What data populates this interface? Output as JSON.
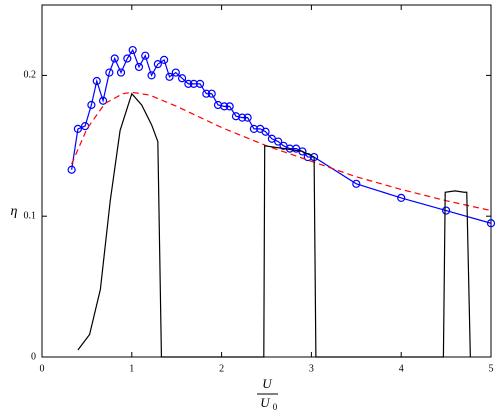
{
  "chart_data": {
    "type": "line",
    "y_label": "η",
    "x_label_numerator": "U",
    "x_label_denominator": "U",
    "x_label_denominator_subscript": "0",
    "xlim": [
      0,
      5
    ],
    "xticks": [
      0,
      1,
      2,
      3,
      4,
      5
    ],
    "ylim": [
      0,
      0.25
    ],
    "yticks": [
      0,
      0.1,
      0.2
    ],
    "grid": false,
    "series": [
      {
        "color": "#0000ff",
        "marker": "circle",
        "dash": false,
        "x": [
          0.33,
          0.4,
          0.48,
          0.55,
          0.61,
          0.68,
          0.75,
          0.81,
          0.88,
          0.95,
          1.01,
          1.08,
          1.15,
          1.22,
          1.29,
          1.36,
          1.42,
          1.49,
          1.56,
          1.63,
          1.69,
          1.76,
          1.83,
          1.89,
          1.96,
          2.03,
          2.09,
          2.16,
          2.23,
          2.29,
          2.36,
          2.43,
          2.49,
          2.56,
          2.63,
          2.69,
          2.76,
          2.83,
          2.9,
          2.96,
          3.03,
          3.5,
          4.0,
          4.5,
          5.0
        ],
        "values": [
          0.133,
          0.162,
          0.164,
          0.179,
          0.196,
          0.182,
          0.202,
          0.212,
          0.202,
          0.212,
          0.218,
          0.206,
          0.214,
          0.2,
          0.208,
          0.211,
          0.199,
          0.202,
          0.198,
          0.194,
          0.194,
          0.194,
          0.187,
          0.187,
          0.179,
          0.178,
          0.178,
          0.171,
          0.17,
          0.17,
          0.162,
          0.162,
          0.16,
          0.155,
          0.153,
          0.15,
          0.148,
          0.148,
          0.146,
          0.142,
          0.142,
          0.123,
          0.113,
          0.104,
          0.095
        ]
      },
      {
        "color": "#ff0000",
        "marker": "none",
        "dash": true,
        "x": [
          0.33,
          0.5,
          0.7,
          0.9,
          1.0,
          1.2,
          1.5,
          2.0,
          2.5,
          3.0,
          3.5,
          4.0,
          4.5,
          5.0
        ],
        "values": [
          0.137,
          0.162,
          0.18,
          0.187,
          0.188,
          0.186,
          0.178,
          0.163,
          0.15,
          0.139,
          0.128,
          0.119,
          0.111,
          0.104
        ]
      },
      {
        "color": "#000000",
        "marker": "none",
        "dash": false,
        "x": [
          0.4,
          0.53,
          0.65,
          0.76,
          0.87,
          1.0,
          1.11,
          1.22,
          1.29,
          1.33,
          2.47,
          2.48,
          2.7,
          2.9,
          3.0,
          3.03,
          3.05,
          4.47,
          4.49,
          4.6,
          4.7,
          4.73,
          4.77
        ],
        "values": [
          0.005,
          0.016,
          0.048,
          0.111,
          0.161,
          0.187,
          0.179,
          0.165,
          0.153,
          0,
          0,
          0.15,
          0.148,
          0.146,
          0.143,
          0.142,
          0,
          0,
          0.117,
          0.118,
          0.117,
          0.117,
          0
        ]
      }
    ]
  }
}
